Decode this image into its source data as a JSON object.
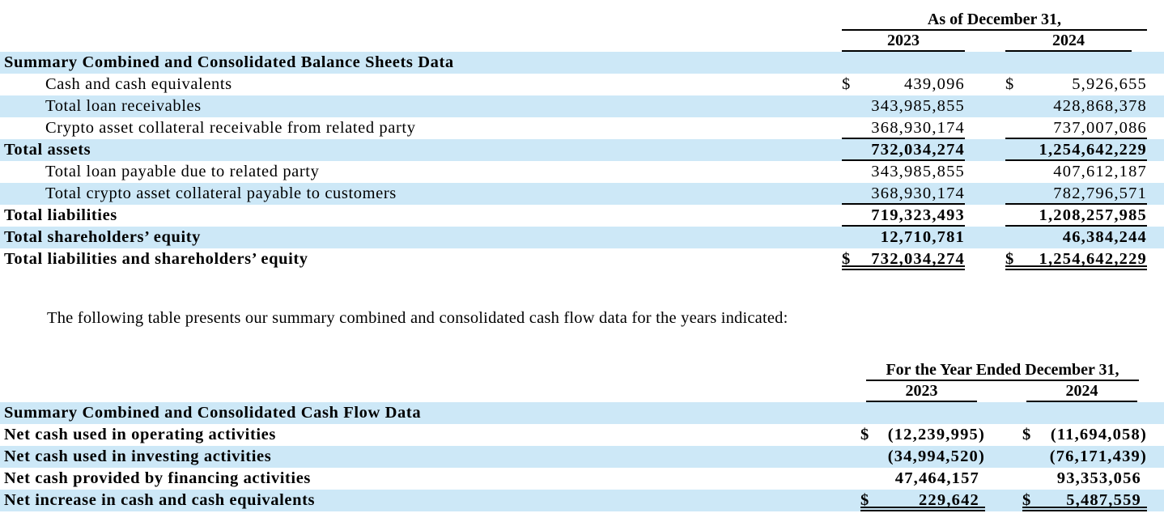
{
  "page": {
    "dollar_sign": "$",
    "highlight_color": "#cde8f7",
    "text_color": "#000000",
    "background_color": "#ffffff"
  },
  "balance_sheet_table": {
    "period_header": "As of December 31,",
    "columns": [
      "2023",
      "2024"
    ],
    "rows": [
      {
        "label": "Summary Combined and Consolidated Balance Sheets Data",
        "style": "section",
        "indent": false,
        "dollar": false,
        "values": [
          "",
          ""
        ],
        "underline": "none",
        "highlight": true
      },
      {
        "label": "Cash and cash equivalents",
        "style": "detail",
        "indent": true,
        "dollar": true,
        "values": [
          "439,096",
          "5,926,655"
        ],
        "underline": "none",
        "highlight": false
      },
      {
        "label": "Total loan receivables",
        "style": "detail",
        "indent": true,
        "dollar": false,
        "values": [
          "343,985,855",
          "428,868,378"
        ],
        "underline": "none",
        "highlight": true
      },
      {
        "label": "Crypto asset collateral receivable from related party",
        "style": "detail",
        "indent": true,
        "dollar": false,
        "values": [
          "368,930,174",
          "737,007,086"
        ],
        "underline": "single",
        "highlight": false
      },
      {
        "label": "Total assets",
        "style": "total",
        "indent": false,
        "dollar": false,
        "values": [
          "732,034,274",
          "1,254,642,229"
        ],
        "underline": "single",
        "highlight": true
      },
      {
        "label": "Total loan payable due to related party",
        "style": "detail",
        "indent": true,
        "dollar": false,
        "values": [
          "343,985,855",
          "407,612,187"
        ],
        "underline": "none",
        "highlight": false
      },
      {
        "label": "Total crypto asset collateral payable to customers",
        "style": "detail",
        "indent": true,
        "dollar": false,
        "values": [
          "368,930,174",
          "782,796,571"
        ],
        "underline": "single",
        "highlight": true
      },
      {
        "label": "Total liabilities",
        "style": "total",
        "indent": false,
        "dollar": false,
        "values": [
          "719,323,493",
          "1,208,257,985"
        ],
        "underline": "single",
        "highlight": false
      },
      {
        "label": "Total shareholders’ equity",
        "style": "total",
        "indent": false,
        "dollar": false,
        "values": [
          "12,710,781",
          "46,384,244"
        ],
        "underline": "none",
        "highlight": true
      },
      {
        "label": "Total liabilities and shareholders’ equity",
        "style": "total",
        "indent": false,
        "dollar": true,
        "values": [
          "732,034,274",
          "1,254,642,229"
        ],
        "underline": "double",
        "highlight": false
      }
    ]
  },
  "intro_paragraph": "The following table presents our summary combined and consolidated cash flow data for the years indicated:",
  "cash_flow_table": {
    "period_header": "For the Year Ended December 31,",
    "columns": [
      "2023",
      "2024"
    ],
    "rows": [
      {
        "label": "Summary Combined and Consolidated Cash Flow Data",
        "style": "section",
        "indent": false,
        "dollar": false,
        "values": [
          "",
          ""
        ],
        "underline": "none",
        "highlight": true
      },
      {
        "label": "Net cash used in operating activities",
        "style": "total",
        "indent": false,
        "dollar": true,
        "values": [
          "(12,239,995)",
          "(11,694,058)"
        ],
        "underline": "none",
        "highlight": false,
        "paren": true
      },
      {
        "label": "Net cash used in investing activities",
        "style": "total",
        "indent": false,
        "dollar": false,
        "values": [
          "(34,994,520)",
          "(76,171,439)"
        ],
        "underline": "none",
        "highlight": true,
        "paren": true
      },
      {
        "label": "Net cash provided by financing activities",
        "style": "total",
        "indent": false,
        "dollar": false,
        "values": [
          "47,464,157",
          "93,353,056"
        ],
        "underline": "none",
        "highlight": false,
        "paren": false
      },
      {
        "label": "Net increase in cash and cash equivalents",
        "style": "total",
        "indent": false,
        "dollar": true,
        "values": [
          "229,642",
          "5,487,559"
        ],
        "underline": "double",
        "highlight": true,
        "paren": false
      }
    ]
  }
}
